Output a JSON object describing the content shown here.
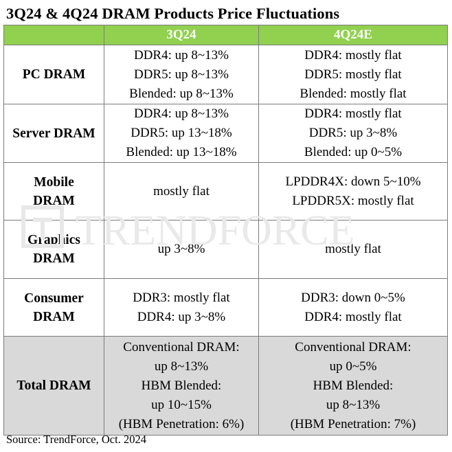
{
  "title": "3Q24 & 4Q24 DRAM Products Price Fluctuations",
  "columns": [
    "3Q24",
    "4Q24E"
  ],
  "rows": [
    {
      "label": [
        "PC DRAM"
      ],
      "q3": [
        "DDR4: up 8~13%",
        "DDR5: up 8~13%",
        "Blended: up 8~13%"
      ],
      "q4": [
        "DDR4: mostly flat",
        "DDR5: mostly flat",
        "Blended: mostly flat"
      ]
    },
    {
      "label": [
        "Server DRAM"
      ],
      "q3": [
        "DDR4: up 8~13%",
        "DDR5: up 13~18%",
        "Blended: up 13~18%"
      ],
      "q4": [
        "DDR4: mostly flat",
        "DDR5: up 3~8%",
        "Blended: up 0~5%"
      ]
    },
    {
      "label": [
        "Mobile",
        "DRAM"
      ],
      "q3": [
        "mostly flat"
      ],
      "q4": [
        "LPDDR4X: down 5~10%",
        "LPDDR5X: mostly flat"
      ]
    },
    {
      "label": [
        "Graphics",
        "DRAM"
      ],
      "q3": [
        "up 3~8%"
      ],
      "q4": [
        "mostly flat"
      ]
    },
    {
      "label": [
        "Consumer",
        "DRAM"
      ],
      "q3": [
        "DDR3: mostly flat",
        "DDR4: up 3~8%"
      ],
      "q4": [
        "DDR3: down 0~5%",
        "DDR4: mostly flat"
      ]
    },
    {
      "label": [
        "Total DRAM"
      ],
      "q3": [
        "Conventional DRAM:",
        "up 8~13%",
        "HBM Blended:",
        "up 10~15%",
        "(HBM Penetration: 6%)"
      ],
      "q4": [
        "Conventional DRAM:",
        "up 0~5%",
        "HBM Blended:",
        "up 8~13%",
        "(HBM Penetration: 7%)"
      ]
    }
  ],
  "watermark": "TRENDFORCE",
  "source": "Source: TrendForce, Oct. 2024",
  "colors": {
    "header_bg": "#92d050",
    "total_bg": "#d9d9d9",
    "border": "#7a7a7a"
  }
}
